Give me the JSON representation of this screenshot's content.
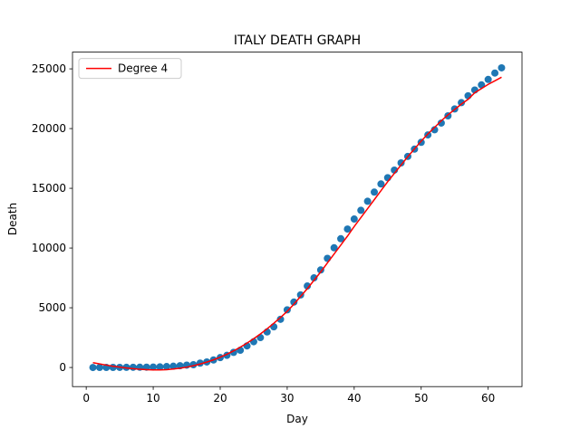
{
  "chart_data": {
    "type": "scatter",
    "title": "ITALY DEATH GRAPH",
    "x_label": "Day",
    "y_label": "Death",
    "x": [
      1,
      2,
      3,
      4,
      5,
      6,
      7,
      8,
      9,
      10,
      11,
      12,
      13,
      14,
      15,
      16,
      17,
      18,
      19,
      20,
      21,
      22,
      23,
      24,
      25,
      26,
      27,
      28,
      29,
      30,
      31,
      32,
      33,
      34,
      35,
      36,
      37,
      38,
      39,
      40,
      41,
      42,
      43,
      44,
      45,
      46,
      47,
      48,
      49,
      50,
      51,
      52,
      53,
      54,
      55,
      56,
      57,
      58,
      59,
      60,
      61,
      62
    ],
    "series": [
      {
        "type": "scatter",
        "color": "#1f77b4",
        "values": [
          1,
          2,
          3,
          7,
          10,
          12,
          17,
          21,
          29,
          34,
          52,
          79,
          107,
          148,
          197,
          233,
          366,
          463,
          631,
          827,
          1016,
          1266,
          1441,
          1809,
          2158,
          2503,
          2978,
          3405,
          4032,
          4825,
          5476,
          6077,
          6820,
          7503,
          8165,
          9134,
          10023,
          10779,
          11591,
          12428,
          13155,
          13915,
          14681,
          15362,
          15887,
          16523,
          17127,
          17669,
          18279,
          18849,
          19468,
          19899,
          20465,
          21067,
          21645,
          22170,
          22745,
          23227,
          23660,
          24114,
          24648,
          25085
        ]
      },
      {
        "type": "line",
        "name": "Degree 4",
        "color": "#ff0000",
        "values": [
          400,
          300,
          200,
          100,
          30,
          -40,
          -100,
          -150,
          -180,
          -200,
          -200,
          -180,
          -130,
          -60,
          30,
          150,
          290,
          450,
          640,
          860,
          1110,
          1390,
          1700,
          2040,
          2410,
          2810,
          3240,
          3700,
          4190,
          4700,
          5300,
          5950,
          6600,
          7300,
          8000,
          8750,
          9500,
          10250,
          11000,
          11800,
          12550,
          13300,
          14050,
          14800,
          15550,
          16250,
          16950,
          17650,
          18300,
          18950,
          19550,
          20100,
          20650,
          21150,
          21600,
          22050,
          22450,
          23000,
          23350,
          23700,
          24000,
          24300
        ]
      }
    ],
    "xlim": [
      -2.05,
      65.05
    ],
    "ylim": [
      -1600,
      26400
    ],
    "xticks": [
      0,
      10,
      20,
      30,
      40,
      50,
      60
    ],
    "yticks": [
      0,
      5000,
      10000,
      15000,
      20000,
      25000
    ],
    "legend": "upper left"
  }
}
